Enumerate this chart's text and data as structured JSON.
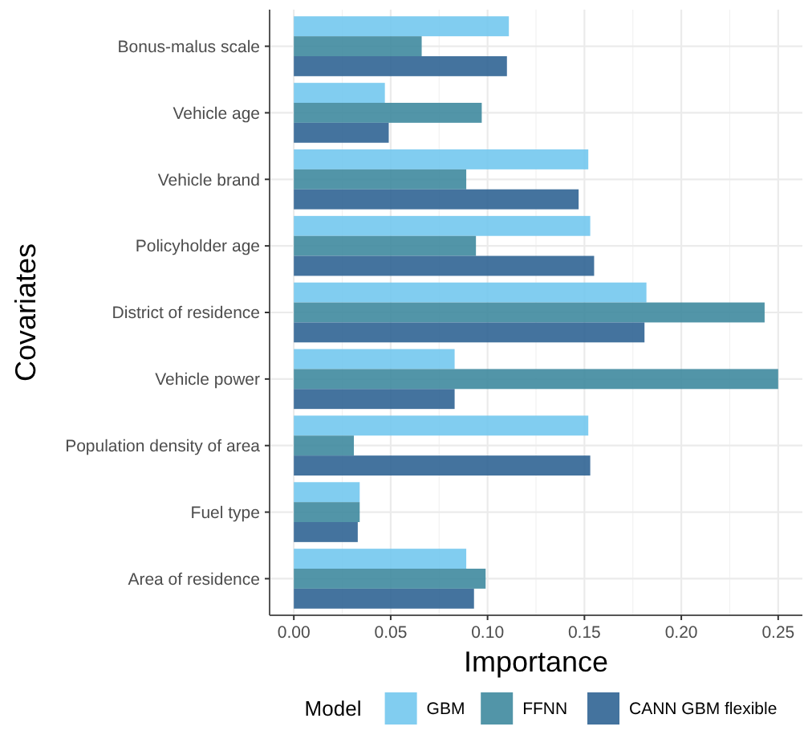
{
  "chart_data": {
    "type": "bar",
    "orientation": "horizontal",
    "xlabel": "Importance",
    "ylabel": "Covariates",
    "legend_title": "Model",
    "legend": "bottom",
    "grid": true,
    "categories": [
      "Bonus-malus scale",
      "Vehicle age",
      "Vehicle brand",
      "Policyholder age",
      "District of residence",
      "Vehicle power",
      "Population density of area",
      "Fuel type",
      "Area of residence"
    ],
    "series": [
      {
        "name": "GBM",
        "color": "#73c8ee",
        "values": [
          0.111,
          0.047,
          0.152,
          0.153,
          0.182,
          0.083,
          0.152,
          0.034,
          0.089
        ]
      },
      {
        "name": "FFNN",
        "color": "#3f8a9f",
        "values": [
          0.066,
          0.097,
          0.089,
          0.094,
          0.243,
          0.25,
          0.031,
          0.034,
          0.099
        ]
      },
      {
        "name": "CANN GBM flexible",
        "color": "#306494",
        "values": [
          0.11,
          0.049,
          0.147,
          0.155,
          0.181,
          0.083,
          0.153,
          0.033,
          0.093
        ]
      }
    ],
    "xlim": [
      -0.0125,
      0.2625
    ],
    "xticks": [
      {
        "value": 0,
        "label": "0.00"
      },
      {
        "value": 0.05,
        "label": "0.05"
      },
      {
        "value": 0.1,
        "label": "0.10"
      },
      {
        "value": 0.15,
        "label": "0.15"
      },
      {
        "value": 0.2,
        "label": "0.20"
      },
      {
        "value": 0.25,
        "label": "0.25"
      }
    ]
  }
}
